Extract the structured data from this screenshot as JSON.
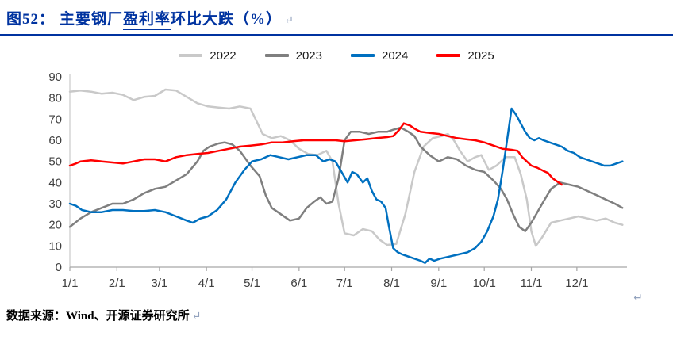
{
  "header": {
    "figure_label": "图52：",
    "title_part1": "主要钢厂",
    "title_underlined": "盈利率",
    "title_part2": "环比大跌（%）"
  },
  "misc": {
    "return_mark": "↵"
  },
  "footer": {
    "text": "数据来源：Wind、开源证券研究所"
  },
  "colors": {
    "title_navy": "#0033A0",
    "axis_gray": "#A6A6A6",
    "series_2022": "#C9C9C9",
    "series_2023": "#7F7F7F",
    "series_2024": "#0070C0",
    "series_2025": "#FF0000"
  },
  "chart_data": {
    "type": "line",
    "title": "主要钢厂盈利率环比大跌（%）",
    "figure": "图52",
    "ylabel": "",
    "xlabel": "",
    "ylim": [
      0,
      90
    ],
    "ytick_step": 10,
    "grid": false,
    "legend_position": "top-center",
    "x_axis": {
      "unit": "day_of_year",
      "domain": [
        1,
        368
      ],
      "tick_days": [
        1,
        32,
        60,
        91,
        121,
        152,
        182,
        213,
        244,
        274,
        305,
        335
      ],
      "tick_labels": [
        "1/1",
        "2/1",
        "3/1",
        "4/1",
        "5/1",
        "6/1",
        "7/1",
        "8/1",
        "9/1",
        "10/1",
        "11/1",
        "12/1"
      ]
    },
    "series": [
      {
        "name": "2022",
        "color": "#C9C9C9",
        "points": [
          [
            1,
            83
          ],
          [
            8,
            83.5
          ],
          [
            15,
            83
          ],
          [
            22,
            82
          ],
          [
            29,
            82.5
          ],
          [
            36,
            81.5
          ],
          [
            43,
            79
          ],
          [
            50,
            80.5
          ],
          [
            57,
            81
          ],
          [
            64,
            84
          ],
          [
            71,
            83.5
          ],
          [
            78,
            80.5
          ],
          [
            85,
            77.5
          ],
          [
            92,
            76
          ],
          [
            99,
            75.5
          ],
          [
            106,
            75
          ],
          [
            113,
            76
          ],
          [
            120,
            75
          ],
          [
            124,
            69
          ],
          [
            128,
            63
          ],
          [
            134,
            61
          ],
          [
            140,
            62
          ],
          [
            146,
            60
          ],
          [
            152,
            56
          ],
          [
            158,
            53.5
          ],
          [
            164,
            53
          ],
          [
            170,
            55
          ],
          [
            174,
            50
          ],
          [
            178,
            30
          ],
          [
            182,
            16
          ],
          [
            188,
            15
          ],
          [
            194,
            18
          ],
          [
            200,
            17
          ],
          [
            205,
            13
          ],
          [
            210,
            10.5
          ],
          [
            216,
            11
          ],
          [
            222,
            25
          ],
          [
            228,
            45
          ],
          [
            234,
            57
          ],
          [
            240,
            61
          ],
          [
            246,
            62
          ],
          [
            250,
            63
          ],
          [
            254,
            60
          ],
          [
            258,
            55
          ],
          [
            263,
            50
          ],
          [
            268,
            52
          ],
          [
            272,
            53
          ],
          [
            277,
            46
          ],
          [
            282,
            48
          ],
          [
            288,
            52
          ],
          [
            294,
            52
          ],
          [
            298,
            44
          ],
          [
            302,
            32
          ],
          [
            305,
            17
          ],
          [
            308,
            10
          ],
          [
            312,
            14
          ],
          [
            318,
            21
          ],
          [
            324,
            22
          ],
          [
            330,
            23
          ],
          [
            336,
            24
          ],
          [
            342,
            23
          ],
          [
            348,
            22
          ],
          [
            354,
            23
          ],
          [
            360,
            21
          ],
          [
            365,
            20
          ]
        ]
      },
      {
        "name": "2023",
        "color": "#7F7F7F",
        "points": [
          [
            1,
            19
          ],
          [
            8,
            23
          ],
          [
            15,
            26
          ],
          [
            22,
            28
          ],
          [
            29,
            30
          ],
          [
            36,
            30
          ],
          [
            43,
            32
          ],
          [
            50,
            35
          ],
          [
            57,
            37
          ],
          [
            64,
            38
          ],
          [
            71,
            41
          ],
          [
            78,
            44
          ],
          [
            85,
            50
          ],
          [
            89,
            55
          ],
          [
            93,
            57
          ],
          [
            99,
            58.5
          ],
          [
            103,
            59
          ],
          [
            108,
            58
          ],
          [
            113,
            55
          ],
          [
            120,
            48
          ],
          [
            126,
            43
          ],
          [
            130,
            34
          ],
          [
            134,
            28
          ],
          [
            140,
            25
          ],
          [
            146,
            22
          ],
          [
            152,
            23
          ],
          [
            157,
            28
          ],
          [
            162,
            31
          ],
          [
            166,
            33
          ],
          [
            170,
            30
          ],
          [
            174,
            31
          ],
          [
            178,
            42
          ],
          [
            182,
            60
          ],
          [
            186,
            64
          ],
          [
            192,
            64
          ],
          [
            198,
            63
          ],
          [
            204,
            64
          ],
          [
            210,
            64
          ],
          [
            214,
            65
          ],
          [
            219,
            66
          ],
          [
            224,
            64
          ],
          [
            228,
            62
          ],
          [
            232,
            57
          ],
          [
            238,
            53
          ],
          [
            244,
            50
          ],
          [
            250,
            52
          ],
          [
            256,
            51
          ],
          [
            262,
            48
          ],
          [
            268,
            46
          ],
          [
            274,
            45
          ],
          [
            280,
            41
          ],
          [
            285,
            37
          ],
          [
            289,
            32
          ],
          [
            293,
            25
          ],
          [
            297,
            19
          ],
          [
            301,
            17
          ],
          [
            305,
            21
          ],
          [
            309,
            26
          ],
          [
            313,
            31
          ],
          [
            318,
            37
          ],
          [
            324,
            40
          ],
          [
            330,
            39
          ],
          [
            336,
            38
          ],
          [
            342,
            36
          ],
          [
            348,
            34
          ],
          [
            354,
            32
          ],
          [
            360,
            30
          ],
          [
            365,
            28
          ]
        ]
      },
      {
        "name": "2024",
        "color": "#0070C0",
        "points": [
          [
            1,
            30
          ],
          [
            5,
            29
          ],
          [
            9,
            27
          ],
          [
            15,
            26
          ],
          [
            22,
            26
          ],
          [
            29,
            27
          ],
          [
            36,
            27
          ],
          [
            43,
            26.5
          ],
          [
            50,
            26.5
          ],
          [
            57,
            27
          ],
          [
            64,
            26
          ],
          [
            71,
            24
          ],
          [
            78,
            22
          ],
          [
            82,
            21
          ],
          [
            87,
            23
          ],
          [
            92,
            24
          ],
          [
            98,
            27
          ],
          [
            104,
            32
          ],
          [
            110,
            40
          ],
          [
            116,
            46
          ],
          [
            121,
            50
          ],
          [
            127,
            51
          ],
          [
            133,
            53
          ],
          [
            139,
            52
          ],
          [
            145,
            51
          ],
          [
            151,
            52
          ],
          [
            157,
            53
          ],
          [
            163,
            53
          ],
          [
            168,
            50
          ],
          [
            172,
            51
          ],
          [
            176,
            50
          ],
          [
            180,
            45
          ],
          [
            184,
            40
          ],
          [
            187,
            45
          ],
          [
            190,
            44
          ],
          [
            194,
            40
          ],
          [
            197,
            42
          ],
          [
            200,
            36
          ],
          [
            203,
            32
          ],
          [
            206,
            31
          ],
          [
            209,
            28
          ],
          [
            211,
            20
          ],
          [
            214,
            9
          ],
          [
            217,
            7
          ],
          [
            220,
            6
          ],
          [
            224,
            5
          ],
          [
            228,
            4
          ],
          [
            232,
            3
          ],
          [
            235,
            2
          ],
          [
            238,
            4
          ],
          [
            241,
            3
          ],
          [
            245,
            4
          ],
          [
            251,
            5
          ],
          [
            257,
            6
          ],
          [
            263,
            7
          ],
          [
            268,
            9
          ],
          [
            272,
            12
          ],
          [
            276,
            17
          ],
          [
            280,
            24
          ],
          [
            283,
            32
          ],
          [
            286,
            45
          ],
          [
            288,
            55
          ],
          [
            290,
            65
          ],
          [
            291,
            70
          ],
          [
            292,
            75
          ],
          [
            295,
            72
          ],
          [
            298,
            68
          ],
          [
            301,
            64
          ],
          [
            304,
            61
          ],
          [
            307,
            60
          ],
          [
            310,
            61
          ],
          [
            313,
            60
          ],
          [
            317,
            59
          ],
          [
            321,
            58
          ],
          [
            325,
            57
          ],
          [
            329,
            55
          ],
          [
            333,
            54
          ],
          [
            337,
            52
          ],
          [
            341,
            51
          ],
          [
            345,
            50
          ],
          [
            349,
            49
          ],
          [
            353,
            48
          ],
          [
            357,
            48
          ],
          [
            361,
            49
          ],
          [
            365,
            50
          ]
        ]
      },
      {
        "name": "2025",
        "color": "#FF0000",
        "points": [
          [
            1,
            48
          ],
          [
            5,
            49
          ],
          [
            8,
            50
          ],
          [
            15,
            50.5
          ],
          [
            22,
            50
          ],
          [
            29,
            49.5
          ],
          [
            36,
            49
          ],
          [
            43,
            50
          ],
          [
            50,
            51
          ],
          [
            57,
            51
          ],
          [
            64,
            50
          ],
          [
            71,
            52
          ],
          [
            78,
            53
          ],
          [
            85,
            53.5
          ],
          [
            92,
            54
          ],
          [
            99,
            55
          ],
          [
            106,
            56
          ],
          [
            113,
            57
          ],
          [
            120,
            57.5
          ],
          [
            127,
            58
          ],
          [
            134,
            59
          ],
          [
            141,
            59
          ],
          [
            148,
            59.5
          ],
          [
            155,
            60
          ],
          [
            162,
            60
          ],
          [
            169,
            60
          ],
          [
            176,
            60
          ],
          [
            182,
            59.5
          ],
          [
            189,
            60
          ],
          [
            196,
            60.5
          ],
          [
            203,
            61
          ],
          [
            210,
            61.5
          ],
          [
            214,
            62
          ],
          [
            218,
            65
          ],
          [
            221,
            68
          ],
          [
            225,
            67
          ],
          [
            228,
            65.5
          ],
          [
            232,
            64
          ],
          [
            238,
            63.5
          ],
          [
            244,
            63
          ],
          [
            250,
            62
          ],
          [
            256,
            61
          ],
          [
            262,
            60.5
          ],
          [
            268,
            60
          ],
          [
            274,
            59
          ],
          [
            280,
            57.5
          ],
          [
            286,
            56
          ],
          [
            292,
            55.5
          ],
          [
            296,
            55
          ],
          [
            299,
            52
          ],
          [
            302,
            50
          ],
          [
            305,
            48
          ],
          [
            309,
            47
          ],
          [
            313,
            45.5
          ],
          [
            316,
            44.5
          ],
          [
            319,
            42
          ],
          [
            321,
            41
          ],
          [
            323,
            40
          ],
          [
            325,
            39
          ]
        ]
      }
    ]
  }
}
